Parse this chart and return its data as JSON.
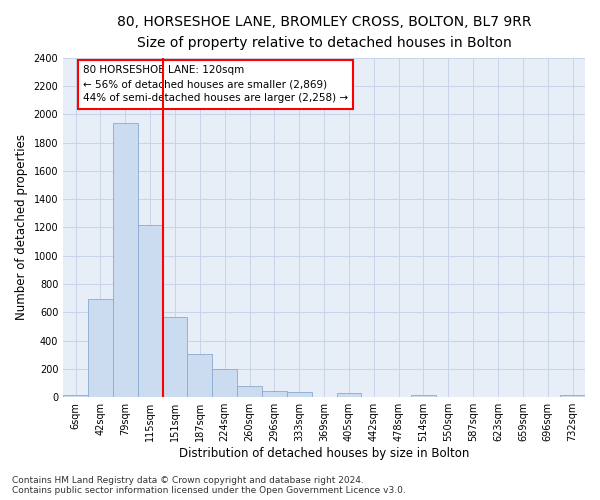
{
  "title": "80, HORSESHOE LANE, BROMLEY CROSS, BOLTON, BL7 9RR",
  "subtitle": "Size of property relative to detached houses in Bolton",
  "xlabel": "Distribution of detached houses by size in Bolton",
  "ylabel": "Number of detached properties",
  "bar_color": "#ccdcf0",
  "bar_edge_color": "#8aaacf",
  "grid_color": "#c8d4e8",
  "background_color": "#e8eef8",
  "bin_labels": [
    "6sqm",
    "42sqm",
    "79sqm",
    "115sqm",
    "151sqm",
    "187sqm",
    "224sqm",
    "260sqm",
    "296sqm",
    "333sqm",
    "369sqm",
    "405sqm",
    "442sqm",
    "478sqm",
    "514sqm",
    "550sqm",
    "587sqm",
    "623sqm",
    "659sqm",
    "696sqm",
    "732sqm"
  ],
  "bar_values": [
    15,
    695,
    1940,
    1220,
    570,
    305,
    200,
    80,
    45,
    38,
    2,
    30,
    2,
    2,
    18,
    2,
    2,
    2,
    2,
    2,
    15
  ],
  "red_line_x": 3.5,
  "annotation_text": "80 HORSESHOE LANE: 120sqm\n← 56% of detached houses are smaller (2,869)\n44% of semi-detached houses are larger (2,258) →",
  "ylim": [
    0,
    2400
  ],
  "yticks": [
    0,
    200,
    400,
    600,
    800,
    1000,
    1200,
    1400,
    1600,
    1800,
    2000,
    2200,
    2400
  ],
  "footer": "Contains HM Land Registry data © Crown copyright and database right 2024.\nContains public sector information licensed under the Open Government Licence v3.0.",
  "title_fontsize": 10,
  "subtitle_fontsize": 9,
  "axis_label_fontsize": 8.5,
  "tick_fontsize": 7,
  "annotation_fontsize": 7.5,
  "footer_fontsize": 6.5
}
